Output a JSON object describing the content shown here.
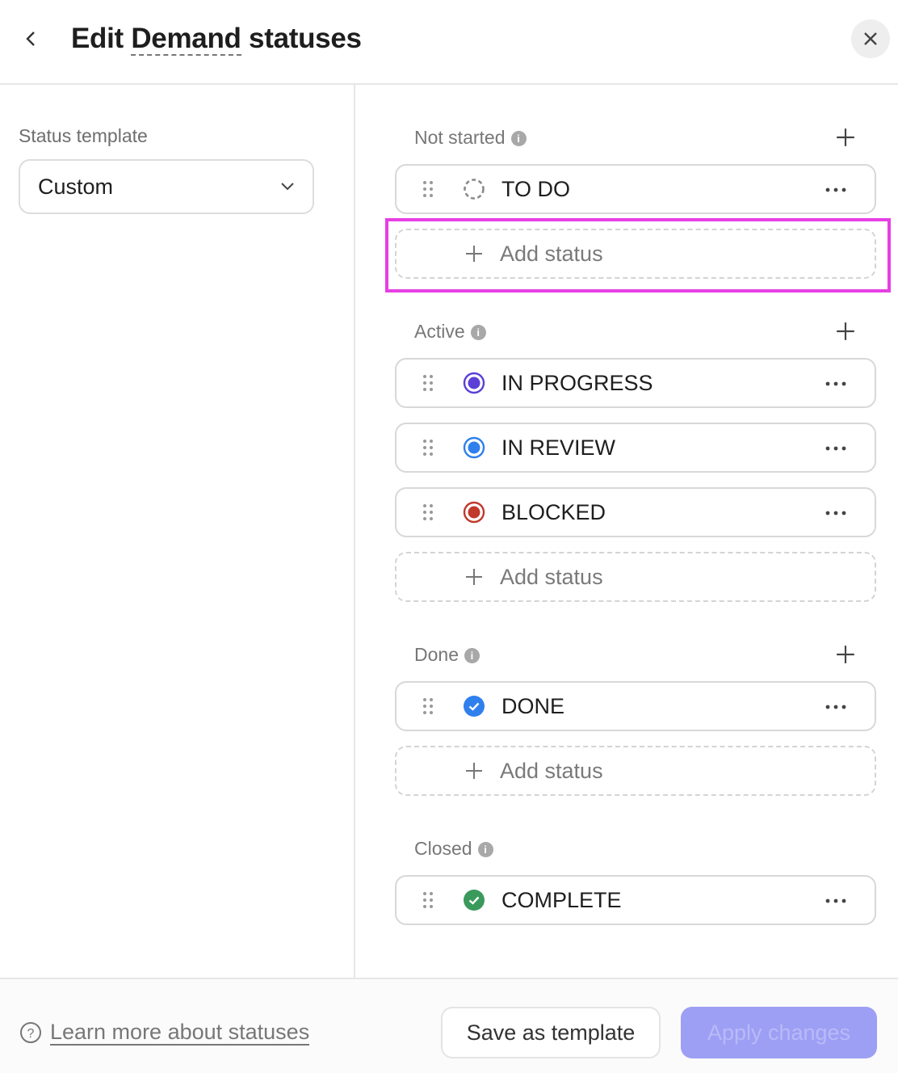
{
  "header": {
    "title_pre": "Edit ",
    "title_u": "Demand",
    "title_post": " statuses"
  },
  "left": {
    "label": "Status template",
    "select_value": "Custom"
  },
  "colors": {
    "accent": "#9d9ff5",
    "highlight": "#e63fe3"
  },
  "sections": [
    {
      "title": "Not started",
      "statuses": [
        {
          "name": "TO DO",
          "icon": "dashed-circle-icon",
          "color": "#8a8a8a"
        }
      ],
      "add_label": "Add status",
      "has_plus": true
    },
    {
      "title": "Active",
      "statuses": [
        {
          "name": "IN PROGRESS",
          "icon": "ring-icon",
          "color": "#5b3fd6"
        },
        {
          "name": "IN REVIEW",
          "icon": "ring-icon",
          "color": "#2f80ed"
        },
        {
          "name": "BLOCKED",
          "icon": "ring-icon",
          "color": "#c0392b"
        }
      ],
      "add_label": "Add status",
      "has_plus": true
    },
    {
      "title": "Done",
      "statuses": [
        {
          "name": "DONE",
          "icon": "check-circle-icon",
          "color": "#2f80ed"
        }
      ],
      "add_label": "Add status",
      "has_plus": true
    },
    {
      "title": "Closed",
      "statuses": [
        {
          "name": "COMPLETE",
          "icon": "check-circle-icon",
          "color": "#3a9a5b"
        }
      ],
      "add_label": null,
      "has_plus": false
    }
  ],
  "footer": {
    "learn": "Learn more about statuses",
    "save": "Save as template",
    "apply": "Apply changes"
  }
}
